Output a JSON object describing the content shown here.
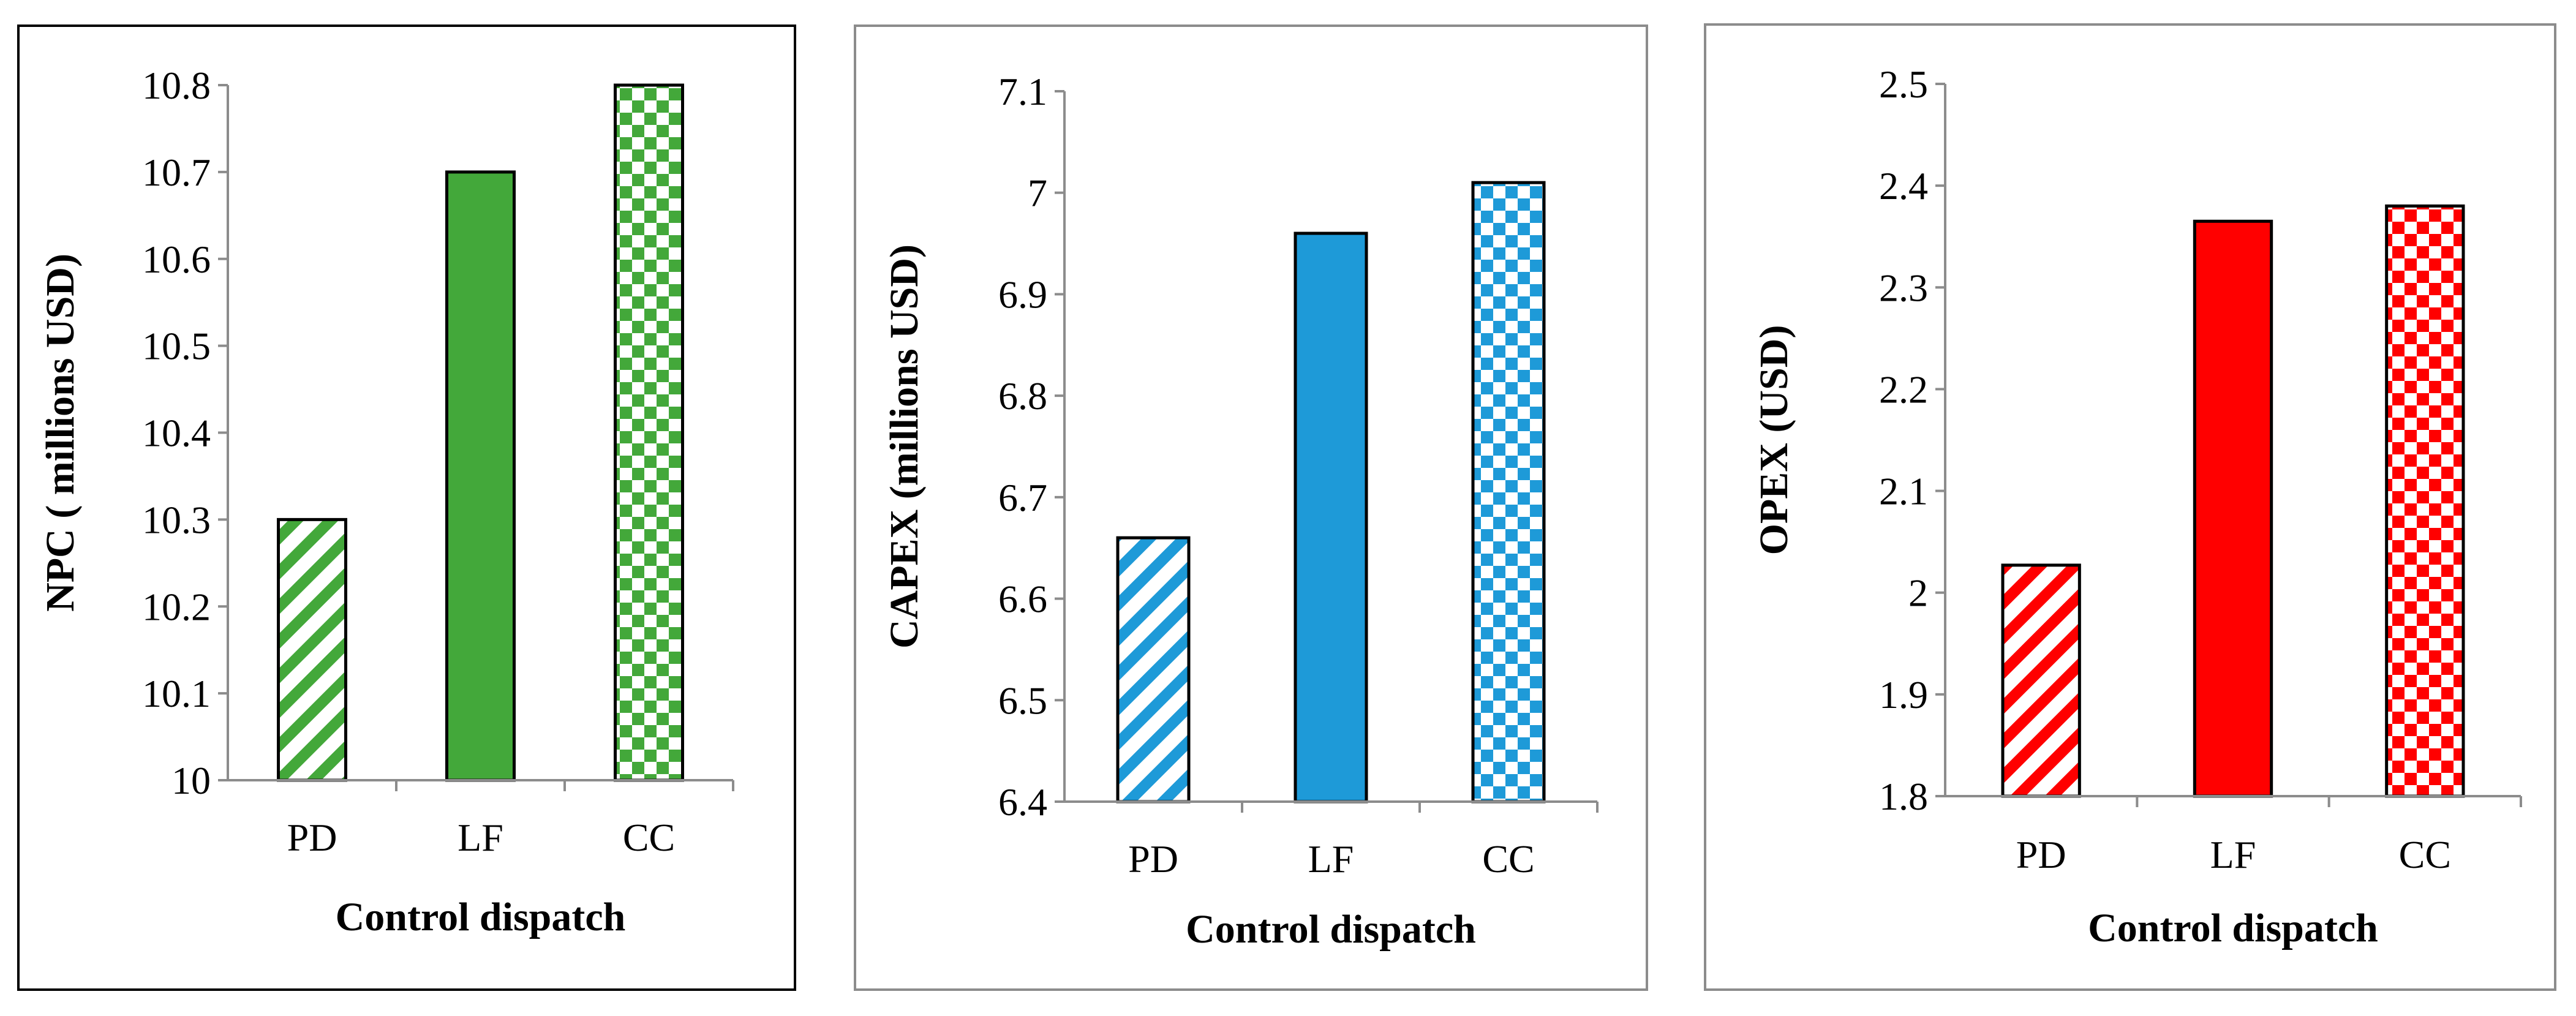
{
  "chart_data": [
    {
      "type": "bar",
      "categories": [
        "PD",
        "LF",
        "CC"
      ],
      "values": [
        10.3,
        10.7,
        10.8
      ],
      "bar_styles": [
        "diagonal",
        "solid",
        "checker"
      ],
      "color": "#43a83a",
      "ylim": [
        10,
        10.8
      ],
      "yticks": [
        "10",
        "10.1",
        "10.2",
        "10.3",
        "10.4",
        "10.5",
        "10.6",
        "10.7",
        "10.8"
      ],
      "xlabel": "Control dispatch",
      "ylabel": "NPC ( millions  USD)"
    },
    {
      "type": "bar",
      "categories": [
        "PD",
        "LF",
        "CC"
      ],
      "values": [
        6.66,
        6.96,
        7.01
      ],
      "bar_styles": [
        "diagonal",
        "solid",
        "checker"
      ],
      "color": "#1e9ad8",
      "ylim": [
        6.4,
        7.1
      ],
      "yticks": [
        "6.4",
        "6.5",
        "6.6",
        "6.7",
        "6.8",
        "6.9",
        "7",
        "7.1"
      ],
      "xlabel": "Control dispatch",
      "ylabel": "CAPEX (millions  USD)"
    },
    {
      "type": "bar",
      "categories": [
        "PD",
        "LF",
        "CC"
      ],
      "values": [
        2.027,
        2.365,
        2.38
      ],
      "bar_styles": [
        "diagonal",
        "solid",
        "checker"
      ],
      "color": "#ff0000",
      "ylim": [
        1.8,
        2.5
      ],
      "yticks": [
        "1.8",
        "1.9",
        "2",
        "2.1",
        "2.2",
        "2.3",
        "2.4",
        "2.5"
      ],
      "xlabel": "Control dispatch",
      "ylabel": "OPEX (USD)"
    }
  ]
}
